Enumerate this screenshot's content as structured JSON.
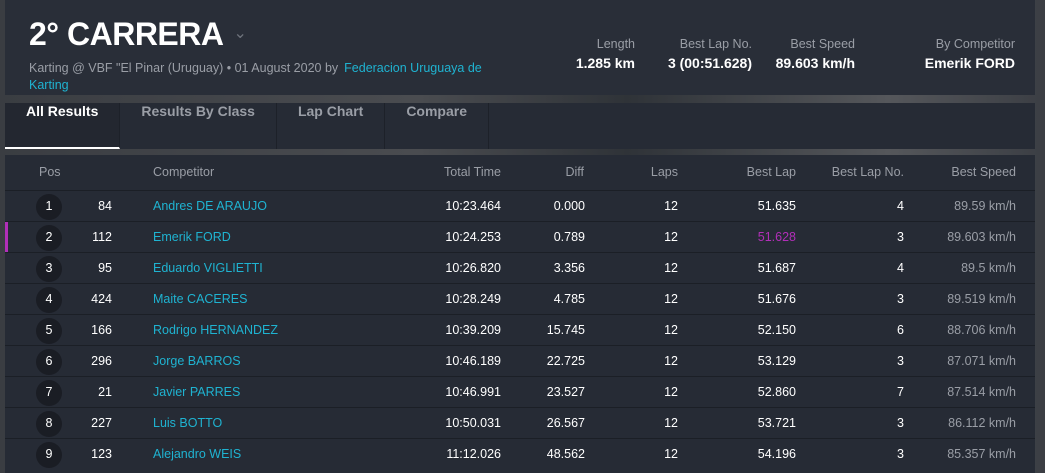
{
  "header": {
    "title": "2° CARRERA",
    "subtitle": "Karting @ VBF \"El Pinar (Uruguay) • 01 August 2020 by",
    "organizer": "Federacion Uruguaya de Karting",
    "stats": [
      {
        "label": "Length",
        "value": "1.285 km"
      },
      {
        "label": "Best Lap No.",
        "value": "3 (00:51.628)"
      },
      {
        "label": "Best Speed",
        "value": "89.603 km/h"
      },
      {
        "label": "By Competitor",
        "value": "Emerik FORD"
      }
    ]
  },
  "tabs": [
    {
      "label": "All Results",
      "active": true
    },
    {
      "label": "Results By Class"
    },
    {
      "label": "Lap Chart"
    },
    {
      "label": "Compare"
    }
  ],
  "table": {
    "columns": [
      "Pos",
      "Competitor",
      "Total Time",
      "Diff",
      "Laps",
      "Best Lap",
      "Best Lap No.",
      "Best Speed"
    ],
    "highlight_color": "#b12fb8",
    "rows": [
      {
        "pos": "1",
        "no": "84",
        "name": "Andres DE ARAUJO",
        "total": "10:23.464",
        "diff": "0.000",
        "laps": "12",
        "best": "51.635",
        "bestno": "4",
        "speed": "89.59 km/h"
      },
      {
        "pos": "2",
        "no": "112",
        "name": "Emerik FORD",
        "total": "10:24.253",
        "diff": "0.789",
        "laps": "12",
        "best": "51.628",
        "bestno": "3",
        "speed": "89.603 km/h",
        "fastest": true
      },
      {
        "pos": "3",
        "no": "95",
        "name": "Eduardo VIGLIETTI",
        "total": "10:26.820",
        "diff": "3.356",
        "laps": "12",
        "best": "51.687",
        "bestno": "4",
        "speed": "89.5 km/h"
      },
      {
        "pos": "4",
        "no": "424",
        "name": "Maite CACERES",
        "total": "10:28.249",
        "diff": "4.785",
        "laps": "12",
        "best": "51.676",
        "bestno": "3",
        "speed": "89.519 km/h"
      },
      {
        "pos": "5",
        "no": "166",
        "name": "Rodrigo HERNANDEZ",
        "total": "10:39.209",
        "diff": "15.745",
        "laps": "12",
        "best": "52.150",
        "bestno": "6",
        "speed": "88.706 km/h"
      },
      {
        "pos": "6",
        "no": "296",
        "name": "Jorge BARROS",
        "total": "10:46.189",
        "diff": "22.725",
        "laps": "12",
        "best": "53.129",
        "bestno": "3",
        "speed": "87.071 km/h"
      },
      {
        "pos": "7",
        "no": "21",
        "name": "Javier PARRES",
        "total": "10:46.991",
        "diff": "23.527",
        "laps": "12",
        "best": "52.860",
        "bestno": "7",
        "speed": "87.514 km/h"
      },
      {
        "pos": "8",
        "no": "227",
        "name": "Luis BOTTO",
        "total": "10:50.031",
        "diff": "26.567",
        "laps": "12",
        "best": "53.721",
        "bestno": "3",
        "speed": "86.112 km/h"
      },
      {
        "pos": "9",
        "no": "123",
        "name": "Alejandro WEIS",
        "total": "11:12.026",
        "diff": "48.562",
        "laps": "12",
        "best": "54.196",
        "bestno": "3",
        "speed": "85.357 km/h"
      }
    ]
  }
}
